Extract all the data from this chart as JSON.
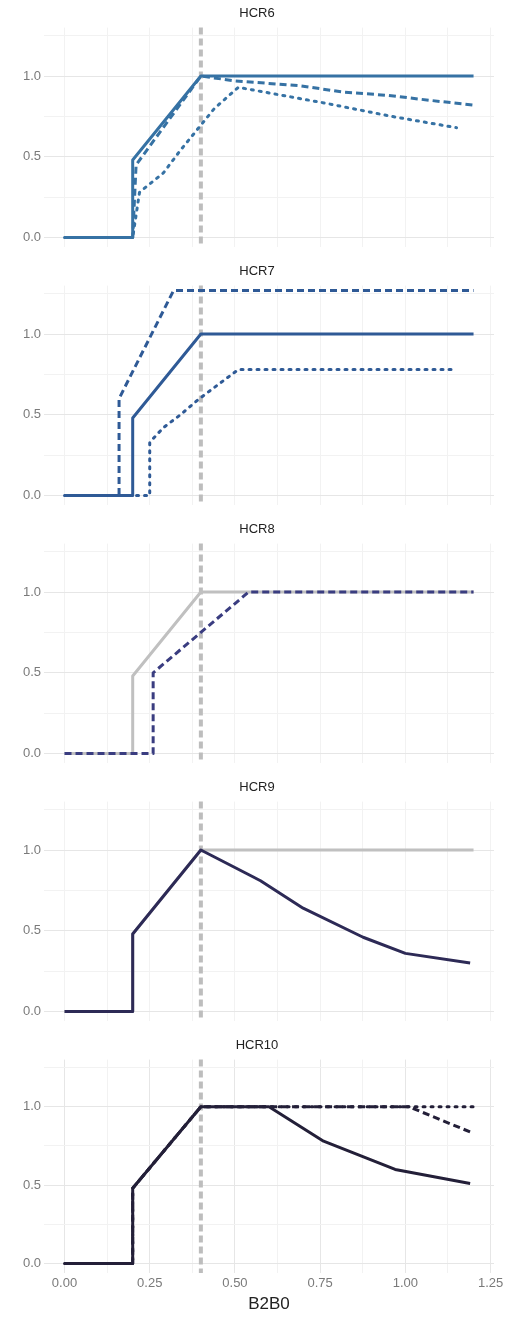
{
  "chart_data": [
    {
      "type": "line",
      "title": "HCR6",
      "xlim": [
        -0.06,
        1.26
      ],
      "ylim": [
        -0.06,
        1.3
      ],
      "xticks": [
        {
          "value": 0,
          "label": null
        },
        {
          "value": 0.125,
          "label": null
        },
        {
          "value": 0.25,
          "label": null
        },
        {
          "value": 0.375,
          "label": null
        },
        {
          "value": 0.5,
          "label": null
        },
        {
          "value": 0.625,
          "label": null
        },
        {
          "value": 0.75,
          "label": null
        },
        {
          "value": 0.875,
          "label": null
        },
        {
          "value": 1,
          "label": null
        },
        {
          "value": 1.125,
          "label": null
        },
        {
          "value": 1.25,
          "label": null
        }
      ],
      "yticks": [
        {
          "value": 0,
          "label": "0.0"
        },
        {
          "value": 0.25,
          "label": null
        },
        {
          "value": 0.5,
          "label": "0.5"
        },
        {
          "value": 0.75,
          "label": null
        },
        {
          "value": 1,
          "label": "1.0"
        },
        {
          "value": 1.25,
          "label": null
        }
      ],
      "tick_labels": "y",
      "grid": true,
      "marker": "none",
      "ref_lines": [
        {
          "axis": "x",
          "value": 0.4,
          "color": "#bdbdbd",
          "line_style": "dashed"
        }
      ],
      "series": [
        {
          "color": "#3672a4",
          "line_style": "dotted",
          "x": [
            0,
            0.2,
            0.22,
            0.29,
            0.34,
            0.39,
            0.44,
            0.51,
            0.77,
            0.96,
            1.15
          ],
          "values": [
            0,
            0,
            0.28,
            0.4,
            0.54,
            0.67,
            0.8,
            0.93,
            0.83,
            0.75,
            0.68
          ]
        },
        {
          "color": "#3672a4",
          "line_style": "dashed",
          "x": [
            0,
            0.2,
            0.21,
            0.4,
            0.5,
            0.69,
            0.82,
            0.95,
            1.07,
            1.2
          ],
          "values": [
            0,
            0,
            0.45,
            1,
            0.97,
            0.94,
            0.9,
            0.88,
            0.85,
            0.82
          ]
        },
        {
          "color": "#3672a4",
          "line_style": "solid",
          "x": [
            0,
            0.2,
            0.2,
            0.4,
            1.2
          ],
          "values": [
            0,
            0,
            0.48,
            1,
            1
          ]
        }
      ]
    },
    {
      "type": "line",
      "title": "HCR7",
      "xlim": [
        -0.06,
        1.26
      ],
      "ylim": [
        -0.06,
        1.3
      ],
      "xticks": [
        {
          "value": 0,
          "label": null
        },
        {
          "value": 0.125,
          "label": null
        },
        {
          "value": 0.25,
          "label": null
        },
        {
          "value": 0.375,
          "label": null
        },
        {
          "value": 0.5,
          "label": null
        },
        {
          "value": 0.625,
          "label": null
        },
        {
          "value": 0.75,
          "label": null
        },
        {
          "value": 0.875,
          "label": null
        },
        {
          "value": 1,
          "label": null
        },
        {
          "value": 1.125,
          "label": null
        },
        {
          "value": 1.25,
          "label": null
        }
      ],
      "yticks": [
        {
          "value": 0,
          "label": "0.0"
        },
        {
          "value": 0.25,
          "label": null
        },
        {
          "value": 0.5,
          "label": "0.5"
        },
        {
          "value": 0.75,
          "label": null
        },
        {
          "value": 1,
          "label": "1.0"
        },
        {
          "value": 1.25,
          "label": null
        }
      ],
      "tick_labels": "y",
      "grid": true,
      "marker": "none",
      "ref_lines": [
        {
          "axis": "x",
          "value": 0.4,
          "color": "#bdbdbd",
          "line_style": "dashed"
        }
      ],
      "series": [
        {
          "color": "#2f5a96",
          "line_style": "dotted",
          "x": [
            0,
            0.25,
            0.25,
            0.29,
            0.34,
            0.39,
            0.44,
            0.51,
            1.15
          ],
          "values": [
            0,
            0,
            0.33,
            0.42,
            0.5,
            0.59,
            0.67,
            0.78,
            0.78
          ]
        },
        {
          "color": "#2f5a96",
          "line_style": "dashed",
          "x": [
            0,
            0.16,
            0.16,
            0.32,
            1.2
          ],
          "values": [
            0,
            0,
            0.6,
            1.27,
            1.27
          ]
        },
        {
          "color": "#2f5a96",
          "line_style": "solid",
          "x": [
            0,
            0.2,
            0.2,
            0.4,
            1.2
          ],
          "values": [
            0,
            0,
            0.48,
            1,
            1
          ]
        }
      ]
    },
    {
      "type": "line",
      "title": "HCR8",
      "xlim": [
        -0.06,
        1.26
      ],
      "ylim": [
        -0.06,
        1.3
      ],
      "xticks": [
        {
          "value": 0,
          "label": null
        },
        {
          "value": 0.125,
          "label": null
        },
        {
          "value": 0.25,
          "label": null
        },
        {
          "value": 0.375,
          "label": null
        },
        {
          "value": 0.5,
          "label": null
        },
        {
          "value": 0.625,
          "label": null
        },
        {
          "value": 0.75,
          "label": null
        },
        {
          "value": 0.875,
          "label": null
        },
        {
          "value": 1,
          "label": null
        },
        {
          "value": 1.125,
          "label": null
        },
        {
          "value": 1.25,
          "label": null
        }
      ],
      "yticks": [
        {
          "value": 0,
          "label": "0.0"
        },
        {
          "value": 0.25,
          "label": null
        },
        {
          "value": 0.5,
          "label": "0.5"
        },
        {
          "value": 0.75,
          "label": null
        },
        {
          "value": 1,
          "label": "1.0"
        },
        {
          "value": 1.25,
          "label": null
        }
      ],
      "tick_labels": "y",
      "grid": true,
      "marker": "none",
      "ref_lines": [
        {
          "axis": "x",
          "value": 0.4,
          "color": "#bdbdbd",
          "line_style": "dashed"
        }
      ],
      "series": [
        {
          "color": "#c0c0c0",
          "line_style": "solid",
          "x": [
            0,
            0.2,
            0.2,
            0.4,
            1.2
          ],
          "values": [
            0,
            0,
            0.48,
            1,
            1
          ]
        },
        {
          "color": "#3a3d80",
          "line_style": "dashed",
          "x": [
            0,
            0.26,
            0.26,
            0.54,
            1.2
          ],
          "values": [
            0,
            0,
            0.5,
            1,
            1
          ]
        }
      ]
    },
    {
      "type": "line",
      "title": "HCR9",
      "xlim": [
        -0.06,
        1.26
      ],
      "ylim": [
        -0.06,
        1.3
      ],
      "xticks": [
        {
          "value": 0,
          "label": null
        },
        {
          "value": 0.125,
          "label": null
        },
        {
          "value": 0.25,
          "label": null
        },
        {
          "value": 0.375,
          "label": null
        },
        {
          "value": 0.5,
          "label": null
        },
        {
          "value": 0.625,
          "label": null
        },
        {
          "value": 0.75,
          "label": null
        },
        {
          "value": 0.875,
          "label": null
        },
        {
          "value": 1,
          "label": null
        },
        {
          "value": 1.125,
          "label": null
        },
        {
          "value": 1.25,
          "label": null
        }
      ],
      "yticks": [
        {
          "value": 0,
          "label": "0.0"
        },
        {
          "value": 0.25,
          "label": null
        },
        {
          "value": 0.5,
          "label": "0.5"
        },
        {
          "value": 0.75,
          "label": null
        },
        {
          "value": 1,
          "label": "1.0"
        },
        {
          "value": 1.25,
          "label": null
        }
      ],
      "tick_labels": "y",
      "grid": true,
      "marker": "none",
      "ref_lines": [
        {
          "axis": "x",
          "value": 0.4,
          "color": "#bdbdbd",
          "line_style": "dashed"
        }
      ],
      "series": [
        {
          "color": "#c0c0c0",
          "line_style": "solid",
          "x": [
            0,
            0.2,
            0.2,
            0.4,
            1.2
          ],
          "values": [
            0,
            0,
            0.48,
            1,
            1
          ]
        },
        {
          "color": "#2d2a56",
          "line_style": "solid",
          "x": [
            0,
            0.2,
            0.2,
            0.4,
            0.575,
            0.7,
            0.876,
            1.0,
            1.19
          ],
          "values": [
            0,
            0,
            0.48,
            1,
            0.81,
            0.64,
            0.46,
            0.36,
            0.3
          ]
        }
      ]
    },
    {
      "type": "line",
      "title": "HCR10",
      "xlabel": "B2B0",
      "xlim": [
        -0.06,
        1.26
      ],
      "ylim": [
        -0.06,
        1.3
      ],
      "xticks": [
        {
          "value": 0,
          "label": "0.00"
        },
        {
          "value": 0.125,
          "label": null
        },
        {
          "value": 0.25,
          "label": "0.25"
        },
        {
          "value": 0.375,
          "label": null
        },
        {
          "value": 0.5,
          "label": "0.50"
        },
        {
          "value": 0.625,
          "label": null
        },
        {
          "value": 0.75,
          "label": "0.75"
        },
        {
          "value": 0.875,
          "label": null
        },
        {
          "value": 1,
          "label": "1.00"
        },
        {
          "value": 1.125,
          "label": null
        },
        {
          "value": 1.25,
          "label": "1.25"
        }
      ],
      "yticks": [
        {
          "value": 0,
          "label": "0.0"
        },
        {
          "value": 0.25,
          "label": null
        },
        {
          "value": 0.5,
          "label": "0.5"
        },
        {
          "value": 0.75,
          "label": null
        },
        {
          "value": 1,
          "label": "1.0"
        },
        {
          "value": 1.25,
          "label": null
        }
      ],
      "grid": true,
      "marker": "none",
      "ref_lines": [
        {
          "axis": "x",
          "value": 0.4,
          "color": "#bdbdbd",
          "line_style": "dashed"
        }
      ],
      "series": [
        {
          "color": "#231f38",
          "line_style": "dotted",
          "x": [
            0,
            0.2,
            0.2,
            0.4,
            1.2
          ],
          "values": [
            0,
            0,
            0.48,
            1,
            1
          ]
        },
        {
          "color": "#231f38",
          "line_style": "dashed",
          "x": [
            0,
            0.2,
            0.2,
            0.4,
            1.01,
            1.2
          ],
          "values": [
            0,
            0,
            0.48,
            1,
            1,
            0.83
          ]
        },
        {
          "color": "#231f38",
          "line_style": "solid",
          "x": [
            0,
            0.2,
            0.2,
            0.4,
            0.6,
            0.76,
            0.97,
            1.19
          ],
          "values": [
            0,
            0,
            0.48,
            1,
            1,
            0.78,
            0.6,
            0.51
          ]
        }
      ]
    }
  ]
}
